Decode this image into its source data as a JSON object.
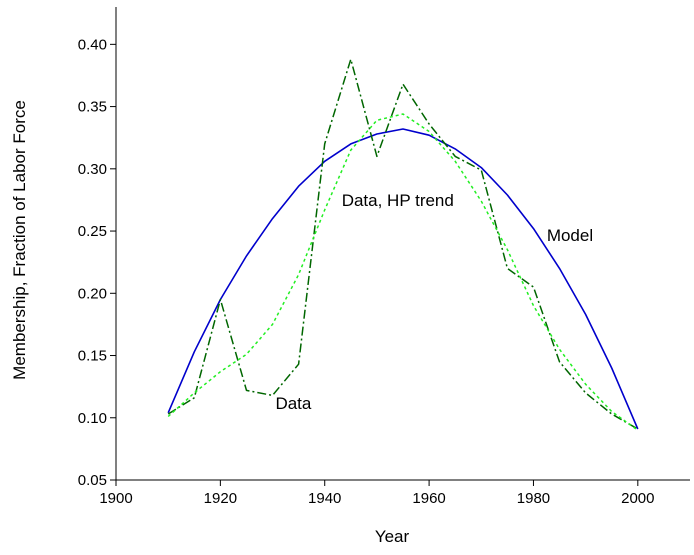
{
  "chart_data": {
    "type": "line",
    "title": "",
    "xlabel": "Year",
    "ylabel": "Membership, Fraction of Labor Force",
    "xlim": [
      1900,
      2010
    ],
    "ylim": [
      0.05,
      0.43
    ],
    "xticks": [
      1900,
      1920,
      1940,
      1960,
      1980,
      2000
    ],
    "yticks": [
      0.05,
      0.1,
      0.15,
      0.2,
      0.25,
      0.3,
      0.35,
      0.4
    ],
    "xtick_labels": [
      "1900",
      "1920",
      "1940",
      "1960",
      "1980",
      "2000"
    ],
    "ytick_labels": [
      "0.05",
      "0.10",
      "0.15",
      "0.20",
      "0.25",
      "0.30",
      "0.35",
      "0.40"
    ],
    "grid": false,
    "legend": "none",
    "series": [
      {
        "name": "Model",
        "color": "#0000cc",
        "style": "solid",
        "x": [
          1910,
          1915,
          1920,
          1925,
          1930,
          1935,
          1940,
          1945,
          1950,
          1955,
          1960,
          1965,
          1970,
          1975,
          1980,
          1985,
          1990,
          1995,
          2000
        ],
        "y": [
          0.104,
          0.153,
          0.195,
          0.23,
          0.26,
          0.286,
          0.306,
          0.32,
          0.328,
          0.332,
          0.327,
          0.316,
          0.301,
          0.279,
          0.252,
          0.22,
          0.183,
          0.14,
          0.091
        ]
      },
      {
        "name": "Data",
        "color": "#006600",
        "style": "dashdot",
        "x": [
          1910,
          1915,
          1920,
          1925,
          1930,
          1935,
          1940,
          1945,
          1950,
          1955,
          1960,
          1965,
          1970,
          1975,
          1980,
          1985,
          1990,
          1995,
          2000
        ],
        "y": [
          0.103,
          0.116,
          0.195,
          0.122,
          0.118,
          0.143,
          0.32,
          0.388,
          0.31,
          0.368,
          0.336,
          0.31,
          0.299,
          0.22,
          0.205,
          0.145,
          0.12,
          0.103,
          0.091
        ]
      },
      {
        "name": "Data, HP trend",
        "color": "#22ee22",
        "style": "dotted",
        "x": [
          1910,
          1915,
          1920,
          1925,
          1930,
          1935,
          1940,
          1945,
          1950,
          1955,
          1960,
          1965,
          1970,
          1975,
          1980,
          1985,
          1990,
          1995,
          2000
        ],
        "y": [
          0.101,
          0.12,
          0.137,
          0.151,
          0.175,
          0.215,
          0.267,
          0.315,
          0.339,
          0.344,
          0.33,
          0.306,
          0.274,
          0.235,
          0.19,
          0.155,
          0.127,
          0.105,
          0.09
        ]
      }
    ],
    "annotations": [
      {
        "text": "Model",
        "x": 1987,
        "y": 0.242
      },
      {
        "text": "Data, HP trend",
        "x": 1954,
        "y": 0.27
      },
      {
        "text": "Data",
        "x": 1934,
        "y": 0.107
      }
    ]
  }
}
